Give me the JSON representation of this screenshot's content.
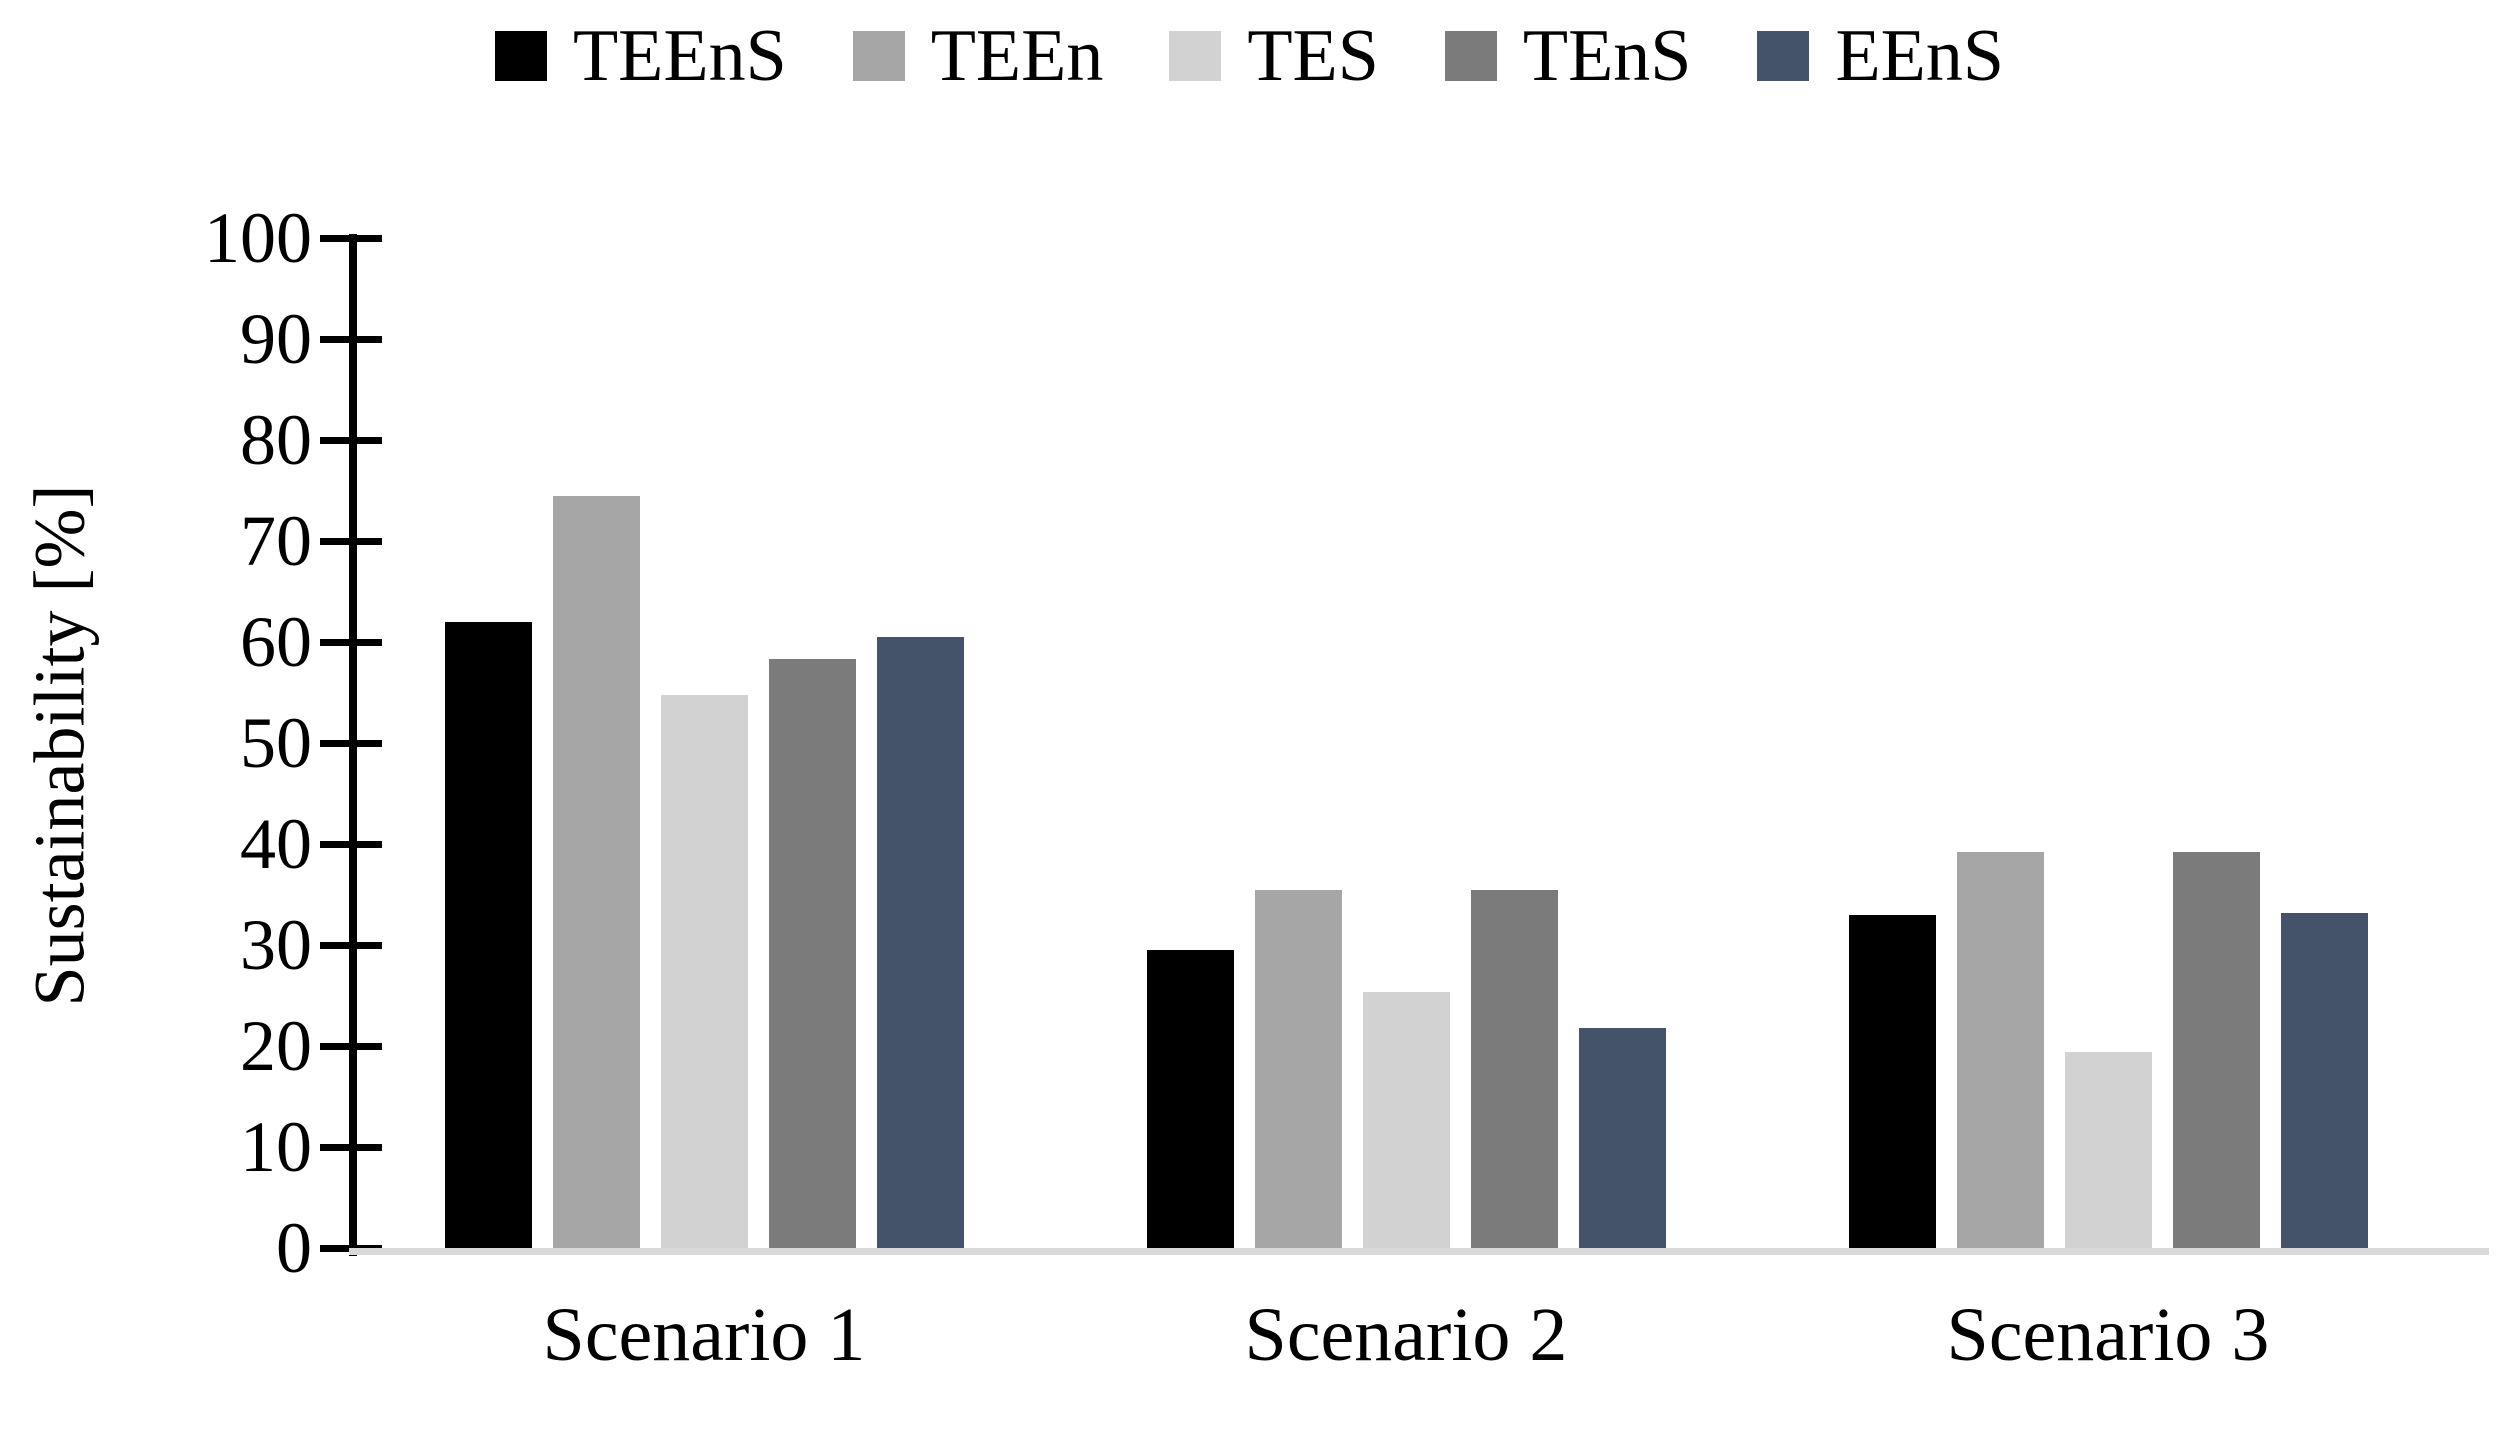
{
  "figure": {
    "background": "#FFFFFF",
    "axis_color": "#000000",
    "baseline_color": "#D9D9D9"
  },
  "chart_data": {
    "type": "bar",
    "title": "",
    "xlabel": "",
    "ylabel": "Sustainability [%]",
    "categories": [
      "Scenario 1",
      "Scenario 2",
      "Scenario 3"
    ],
    "series": [
      {
        "name": "TEEnS",
        "color": "#000000",
        "values": [
          62.0,
          29.5,
          33.0
        ]
      },
      {
        "name": "TEEn",
        "color": "#A6A6A6",
        "values": [
          74.5,
          35.4,
          39.2
        ]
      },
      {
        "name": "TES",
        "color": "#D2D2D2",
        "values": [
          54.8,
          25.3,
          19.4
        ]
      },
      {
        "name": "TEnS",
        "color": "#7B7B7B",
        "values": [
          58.3,
          35.4,
          39.2
        ]
      },
      {
        "name": "EEnS",
        "color": "#44536A",
        "values": [
          60.5,
          21.8,
          33.2
        ]
      }
    ],
    "ylim": [
      0,
      100
    ],
    "yticks": [
      0,
      10,
      20,
      30,
      40,
      50,
      60,
      70,
      80,
      90,
      100
    ],
    "grid": false,
    "legend_position": "top"
  }
}
